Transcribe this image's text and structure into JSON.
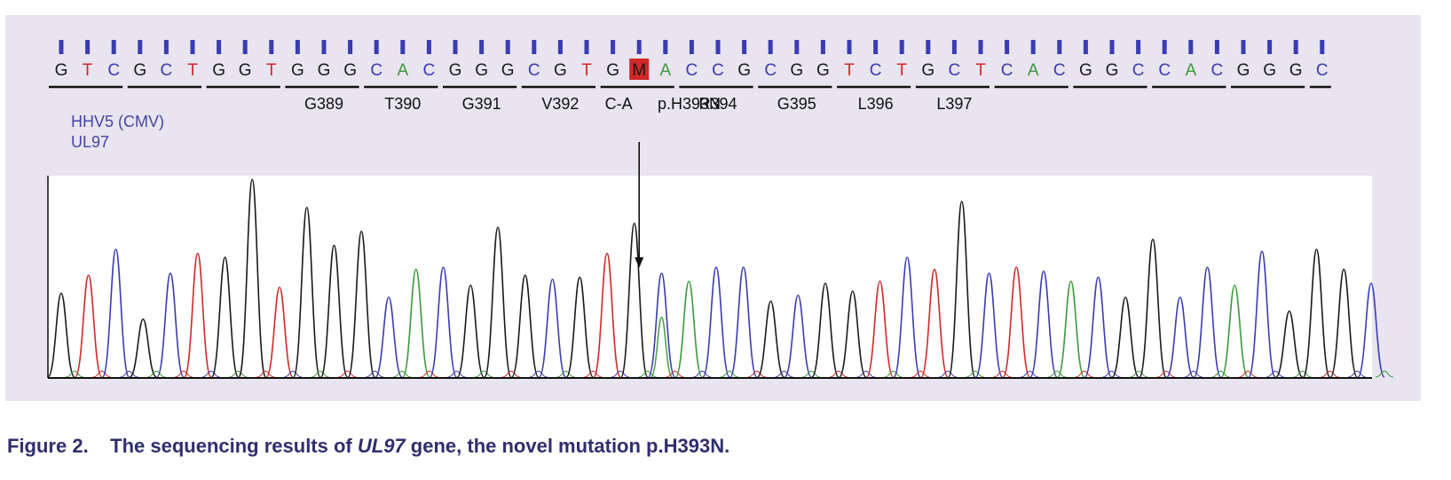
{
  "gene_label": {
    "line1": "HHV5 (CMV)",
    "line2": "UL97"
  },
  "mutation_label": {
    "change": "C-A",
    "protein": "p.H393N"
  },
  "caption": {
    "prefix": "Figure 2.",
    "pre": "The sequencing results of",
    "gene": "UL97",
    "post": "gene, the novel mutation p.H393N."
  },
  "colors": {
    "A": "#3a9a3a",
    "C": "#3b3bb3",
    "G": "#1a1a1a",
    "T": "#d02828",
    "M": "#d02828",
    "tick": "#3b3bb3",
    "panel": "#e8e4f0"
  },
  "chart_data": {
    "type": "line",
    "title": "",
    "xlabel": "",
    "ylabel": "",
    "sequence": [
      "G",
      "T",
      "C",
      "G",
      "C",
      "T",
      "G",
      "G",
      "T",
      "G",
      "G",
      "G",
      "C",
      "A",
      "C",
      "G",
      "G",
      "G",
      "C",
      "G",
      "T",
      "G",
      "M",
      "A",
      "C",
      "C",
      "G",
      "C",
      "G",
      "G",
      "T",
      "C",
      "T",
      "G",
      "C",
      "T",
      "C",
      "A",
      "C",
      "G",
      "G",
      "C",
      "C",
      "A",
      "C",
      "G",
      "G",
      "G",
      "C"
    ],
    "codons": [
      "",
      "",
      "",
      "G389",
      "T390",
      "G391",
      "V392",
      "C-A",
      "R394",
      "G395",
      "L396",
      "L397",
      "",
      "",
      ""
    ],
    "mutation": {
      "position": 23,
      "base": "M",
      "change": "C-A",
      "protein": "p.H393N"
    },
    "peaks": [
      {
        "base": "G",
        "height": 0.42
      },
      {
        "base": "T",
        "height": 0.51
      },
      {
        "base": "C",
        "height": 0.64
      },
      {
        "base": "G",
        "height": 0.29
      },
      {
        "base": "C",
        "height": 0.52
      },
      {
        "base": "T",
        "height": 0.62
      },
      {
        "base": "G",
        "height": 0.6
      },
      {
        "base": "G",
        "height": 0.99
      },
      {
        "base": "T",
        "height": 0.45
      },
      {
        "base": "G",
        "height": 0.85
      },
      {
        "base": "G",
        "height": 0.66
      },
      {
        "base": "G",
        "height": 0.73
      },
      {
        "base": "C",
        "height": 0.4
      },
      {
        "base": "A",
        "height": 0.54
      },
      {
        "base": "C",
        "height": 0.55
      },
      {
        "base": "G",
        "height": 0.46
      },
      {
        "base": "G",
        "height": 0.75
      },
      {
        "base": "G",
        "height": 0.51
      },
      {
        "base": "C",
        "height": 0.49
      },
      {
        "base": "G",
        "height": 0.5
      },
      {
        "base": "T",
        "height": 0.62
      },
      {
        "base": "G",
        "height": 0.77
      },
      {
        "base": "C",
        "height": 0.52,
        "secondary": {
          "base": "A",
          "height": 0.3
        }
      },
      {
        "base": "A",
        "height": 0.48
      },
      {
        "base": "C",
        "height": 0.55
      },
      {
        "base": "C",
        "height": 0.55
      },
      {
        "base": "G",
        "height": 0.38
      },
      {
        "base": "C",
        "height": 0.41
      },
      {
        "base": "G",
        "height": 0.47
      },
      {
        "base": "G",
        "height": 0.43
      },
      {
        "base": "T",
        "height": 0.48
      },
      {
        "base": "C",
        "height": 0.6
      },
      {
        "base": "T",
        "height": 0.54
      },
      {
        "base": "G",
        "height": 0.88
      },
      {
        "base": "C",
        "height": 0.52
      },
      {
        "base": "T",
        "height": 0.55
      },
      {
        "base": "C",
        "height": 0.53
      },
      {
        "base": "A",
        "height": 0.48
      },
      {
        "base": "C",
        "height": 0.5
      },
      {
        "base": "G",
        "height": 0.4
      },
      {
        "base": "G",
        "height": 0.69
      },
      {
        "base": "C",
        "height": 0.4
      },
      {
        "base": "C",
        "height": 0.55
      },
      {
        "base": "A",
        "height": 0.46
      },
      {
        "base": "C",
        "height": 0.63
      },
      {
        "base": "G",
        "height": 0.33
      },
      {
        "base": "G",
        "height": 0.64
      },
      {
        "base": "G",
        "height": 0.54
      },
      {
        "base": "C",
        "height": 0.47
      }
    ]
  }
}
